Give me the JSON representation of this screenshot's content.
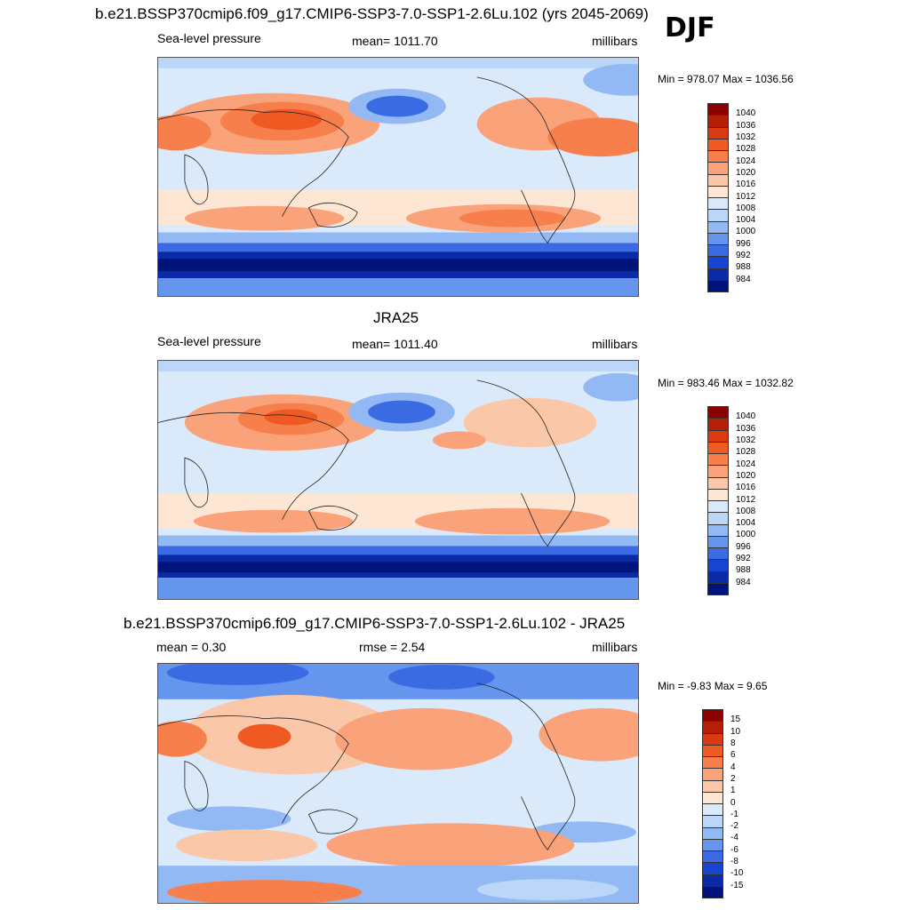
{
  "season": "DJF",
  "panels": [
    {
      "title": "b.e21.BSSP370cmip6.f09_g17.CMIP6-SSP3-7.0-SSP1-2.6Lu.102 (yrs 2045-2069)",
      "left_label": "Sea-level pressure",
      "center_label": "mean= 1011.70",
      "right_label": "millibars",
      "minmax": "Min = 978.07 Max = 1036.56",
      "map_kind": "model"
    },
    {
      "title": "JRA25",
      "left_label": "Sea-level pressure",
      "center_label": "mean= 1011.40",
      "right_label": "millibars",
      "minmax": "Min = 983.46 Max = 1032.82",
      "map_kind": "obs"
    },
    {
      "title": "b.e21.BSSP370cmip6.f09_g17.CMIP6-SSP3-7.0-SSP1-2.6Lu.102 - JRA25",
      "left_label": "mean =   0.30",
      "center_label": "rmse =   2.54",
      "right_label": "millibars",
      "minmax": "Min =  -9.83 Max =   9.65",
      "map_kind": "diff"
    }
  ],
  "colorbars": {
    "absolute": {
      "labels": [
        "1040",
        "1036",
        "1032",
        "1028",
        "1024",
        "1020",
        "1016",
        "1012",
        "1008",
        "1004",
        "1000",
        "996",
        "992",
        "988",
        "984"
      ],
      "colors": [
        "#8b0000",
        "#b51f08",
        "#d93a0f",
        "#ef5a22",
        "#f77f4c",
        "#faa27a",
        "#fbc7a9",
        "#fde7d4",
        "#dbeafb",
        "#bcd6f8",
        "#93b9f4",
        "#6695ee",
        "#3a6be3",
        "#1744d2",
        "#0a2aa8",
        "#00137a"
      ]
    },
    "difference": {
      "labels": [
        "15",
        "10",
        "8",
        "6",
        "4",
        "2",
        "1",
        "0",
        "-1",
        "-2",
        "-4",
        "-6",
        "-8",
        "-10",
        "-15"
      ],
      "colors": [
        "#8b0000",
        "#b51f08",
        "#d93a0f",
        "#ef5a22",
        "#f77f4c",
        "#faa27a",
        "#fbc7a9",
        "#fde7d4",
        "#dbeafb",
        "#bcd6f8",
        "#93b9f4",
        "#6695ee",
        "#3a6be3",
        "#1744d2",
        "#0a2aa8",
        "#00137a"
      ]
    }
  }
}
